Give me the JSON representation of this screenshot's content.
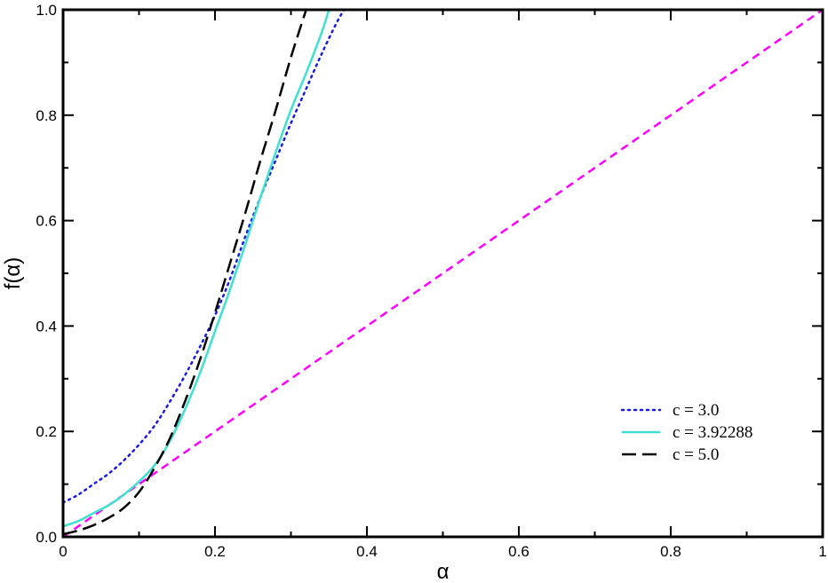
{
  "chart_data": {
    "type": "line",
    "title": "",
    "xlabel": "α",
    "ylabel": "f(α)",
    "xlim": [
      0,
      1
    ],
    "ylim": [
      0,
      1
    ],
    "xticks": [
      {
        "value": 0,
        "label": "0"
      },
      {
        "value": 0.2,
        "label": "0.2"
      },
      {
        "value": 0.4,
        "label": "0.4"
      },
      {
        "value": 0.6,
        "label": "0.6"
      },
      {
        "value": 0.8,
        "label": "0.8"
      },
      {
        "value": 1,
        "label": "1"
      }
    ],
    "yticks": [
      {
        "value": 0,
        "label": "0.0"
      },
      {
        "value": 0.2,
        "label": "0.2"
      },
      {
        "value": 0.4,
        "label": "0.4"
      },
      {
        "value": 0.6,
        "label": "0.6"
      },
      {
        "value": 0.8,
        "label": "0.8"
      },
      {
        "value": 1,
        "label": "1.0"
      }
    ],
    "grid": false,
    "legend_position": "bottom-right",
    "series": [
      {
        "name": "c = 3.0",
        "style": "dotted",
        "color": "#1a1ae6",
        "x": [
          0,
          0.02,
          0.04,
          0.06,
          0.08,
          0.1,
          0.12,
          0.14,
          0.16,
          0.18,
          0.2,
          0.22,
          0.24,
          0.26,
          0.28,
          0.3,
          0.32,
          0.34,
          0.36,
          0.37
        ],
        "y": [
          0.065,
          0.08,
          0.1,
          0.12,
          0.145,
          0.175,
          0.21,
          0.255,
          0.305,
          0.36,
          0.42,
          0.49,
          0.57,
          0.645,
          0.715,
          0.785,
          0.85,
          0.915,
          0.975,
          1.0
        ]
      },
      {
        "name": "c = 3.92288",
        "style": "solid",
        "color": "#40e0d0",
        "x": [
          0,
          0.02,
          0.04,
          0.06,
          0.08,
          0.1,
          0.12,
          0.14,
          0.16,
          0.18,
          0.2,
          0.22,
          0.24,
          0.26,
          0.28,
          0.3,
          0.32,
          0.34,
          0.35
        ],
        "y": [
          0.02,
          0.03,
          0.045,
          0.06,
          0.08,
          0.105,
          0.135,
          0.18,
          0.24,
          0.31,
          0.39,
          0.47,
          0.555,
          0.645,
          0.73,
          0.81,
          0.88,
          0.955,
          1.0
        ]
      },
      {
        "name": "c = 5.0",
        "style": "long-dashed",
        "color": "#000000",
        "x": [
          0,
          0.02,
          0.04,
          0.06,
          0.08,
          0.1,
          0.12,
          0.14,
          0.16,
          0.18,
          0.2,
          0.22,
          0.24,
          0.26,
          0.28,
          0.3,
          0.32
        ],
        "y": [
          0.005,
          0.012,
          0.022,
          0.036,
          0.055,
          0.085,
          0.13,
          0.185,
          0.255,
          0.335,
          0.425,
          0.52,
          0.615,
          0.715,
          0.81,
          0.91,
          1.0
        ]
      },
      {
        "name": "",
        "style": "dashed",
        "color": "#ff00ff",
        "x": [
          0,
          1
        ],
        "y": [
          0,
          1
        ]
      }
    ]
  }
}
